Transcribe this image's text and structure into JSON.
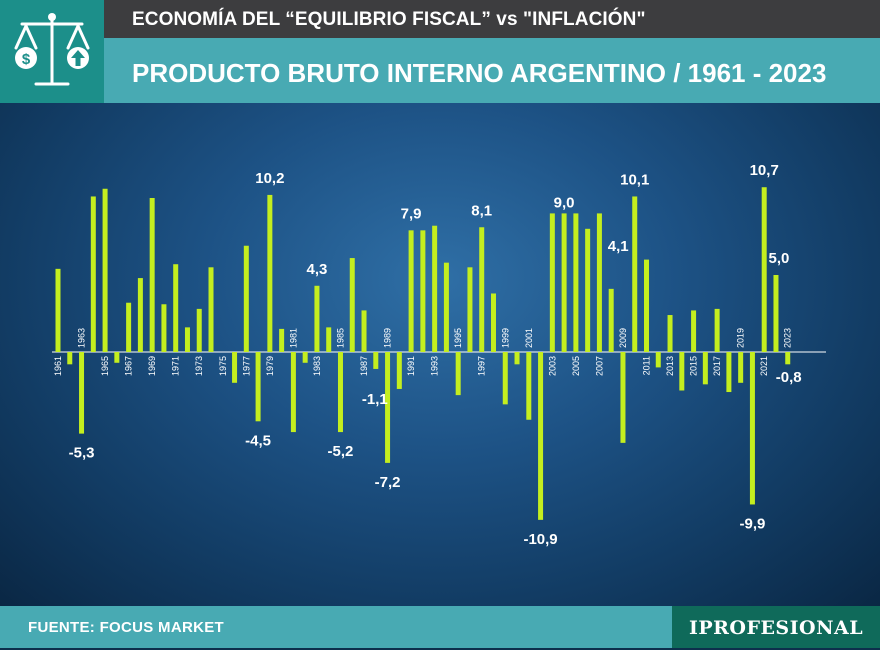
{
  "header": {
    "supertitle": "ECONOMÍA DEL “EQUILIBRIO FISCAL” vs \"INFLACIÓN\"",
    "title": "PRODUCTO BRUTO INTERNO ARGENTINO / 1961 - 2023",
    "logo_icon": "balance-scale-icon"
  },
  "footer": {
    "source": "FUENTE: FOCUS MARKET",
    "brand": "IPROFESIONAL"
  },
  "colors": {
    "bar": "#c4ee1f",
    "label": "#ffffff",
    "accent": "#48aab3",
    "dark_bar": "#3d3d3f",
    "logo_bg": "#1c8f8a",
    "brand_bg": "#0f6a5a"
  },
  "chart_data": {
    "type": "bar",
    "title": "PRODUCTO BRUTO INTERNO ARGENTINO / 1961 - 2023",
    "xlabel": "",
    "ylabel": "",
    "ylim": [
      -11,
      11
    ],
    "categories": [
      1961,
      1962,
      1963,
      1964,
      1965,
      1966,
      1967,
      1968,
      1969,
      1970,
      1971,
      1972,
      1973,
      1974,
      1975,
      1976,
      1977,
      1978,
      1979,
      1980,
      1981,
      1982,
      1983,
      1984,
      1985,
      1986,
      1987,
      1988,
      1989,
      1990,
      1991,
      1992,
      1993,
      1994,
      1995,
      1996,
      1997,
      1998,
      1999,
      2000,
      2001,
      2002,
      2003,
      2004,
      2005,
      2006,
      2007,
      2008,
      2009,
      2010,
      2011,
      2012,
      2013,
      2014,
      2015,
      2016,
      2017,
      2018,
      2019,
      2020,
      2021,
      2022,
      2023
    ],
    "values": [
      5.4,
      -0.8,
      -5.3,
      10.1,
      10.6,
      -0.7,
      3.2,
      4.8,
      10.0,
      3.1,
      5.7,
      1.6,
      2.8,
      5.5,
      0.0,
      -2.0,
      6.9,
      -4.5,
      10.2,
      1.5,
      -5.2,
      -0.7,
      4.3,
      1.6,
      -5.2,
      6.1,
      2.7,
      -1.1,
      -7.2,
      -2.4,
      7.9,
      7.9,
      8.2,
      5.8,
      -2.8,
      5.5,
      8.1,
      3.8,
      -3.4,
      -0.8,
      -4.4,
      -10.9,
      9.0,
      9.0,
      9.0,
      8.0,
      9.0,
      4.1,
      -5.9,
      10.1,
      6.0,
      -1.0,
      2.4,
      -2.5,
      2.7,
      -2.1,
      2.8,
      -2.6,
      -2.0,
      -9.9,
      10.7,
      5.0,
      -0.8
    ],
    "tick_labels": [
      "1961",
      "1963",
      "1965",
      "1967",
      "1969",
      "1971",
      "1973",
      "1975",
      "1977",
      "1979",
      "1981",
      "1983",
      "1985",
      "1987",
      "1989",
      "1991",
      "1993",
      "1995",
      "1997",
      "1999",
      "2001",
      "2003",
      "2005",
      "2007",
      "2009",
      "2011",
      "2013",
      "2015",
      "2017",
      "2019",
      "2021",
      "2023"
    ],
    "annotations": [
      {
        "year": 1963,
        "text": "-5,3"
      },
      {
        "year": 1978,
        "text": "-4,5"
      },
      {
        "year": 1979,
        "text": "10,2"
      },
      {
        "year": 1983,
        "text": "4,3"
      },
      {
        "year": 1985,
        "text": "-5,2"
      },
      {
        "year": 1988,
        "text": "-1,1"
      },
      {
        "year": 1989,
        "text": "-7,2"
      },
      {
        "year": 1991,
        "text": "7,9"
      },
      {
        "year": 1997,
        "text": "8,1"
      },
      {
        "year": 2002,
        "text": "-10,9"
      },
      {
        "year": 2004,
        "text": "9,0"
      },
      {
        "year": 2008,
        "text": "4,1"
      },
      {
        "year": 2010,
        "text": "10,1"
      },
      {
        "year": 2020,
        "text": "-9,9"
      },
      {
        "year": 2021,
        "text": "10,7"
      },
      {
        "year": 2022,
        "text": "5,0"
      },
      {
        "year": 2023,
        "text": "-0,8"
      }
    ],
    "grid": false,
    "legend": "none"
  }
}
